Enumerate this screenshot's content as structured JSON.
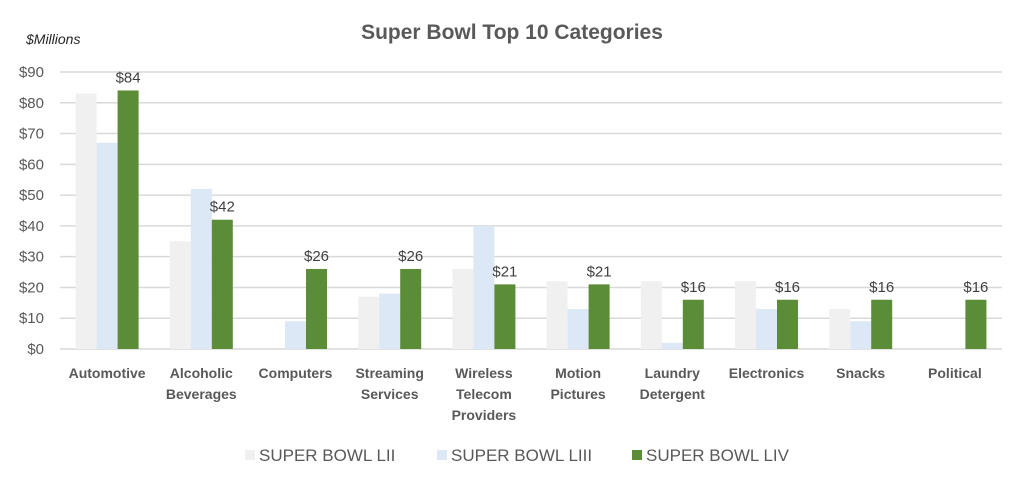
{
  "chart_data": {
    "type": "bar",
    "title": "Super Bowl Top 10 Categories",
    "unit_label": "$Millions",
    "xlabel": "",
    "ylabel": "$Millions",
    "ylim": [
      0,
      90
    ],
    "yticks": [
      0,
      10,
      20,
      30,
      40,
      50,
      60,
      70,
      80,
      90
    ],
    "ytick_labels": [
      "$0",
      "$10",
      "$20",
      "$30",
      "$40",
      "$50",
      "$60",
      "$70",
      "$80",
      "$90"
    ],
    "grid": true,
    "legend_position": "bottom",
    "categories": [
      [
        "Automotive"
      ],
      [
        "Alcoholic",
        "Beverages"
      ],
      [
        "Computers"
      ],
      [
        "Streaming",
        "Services"
      ],
      [
        "Wireless",
        "Telecom",
        "Providers"
      ],
      [
        "Motion",
        "Pictures"
      ],
      [
        "Laundry",
        "Detergent"
      ],
      [
        "Electronics"
      ],
      [
        "Snacks"
      ],
      [
        "Political"
      ]
    ],
    "series": [
      {
        "name": "SUPER BOWL LII",
        "color": "#f0f0f0",
        "values": [
          83,
          35,
          0,
          17,
          26,
          22,
          22,
          22,
          13,
          0
        ],
        "show_labels": false
      },
      {
        "name": "SUPER BOWL LIII",
        "color": "#dce8f5",
        "values": [
          67,
          52,
          9,
          18,
          40,
          13,
          2,
          13,
          9,
          0
        ],
        "show_labels": false
      },
      {
        "name": "SUPER BOWL LIV",
        "color": "#5b8c37",
        "values": [
          84,
          42,
          26,
          26,
          21,
          21,
          16,
          16,
          16,
          16
        ],
        "show_labels": true,
        "labels": [
          "$84",
          "$42",
          "$26",
          "$26",
          "$21",
          "$21",
          "$16",
          "$16",
          "$16",
          "$16"
        ]
      }
    ]
  }
}
